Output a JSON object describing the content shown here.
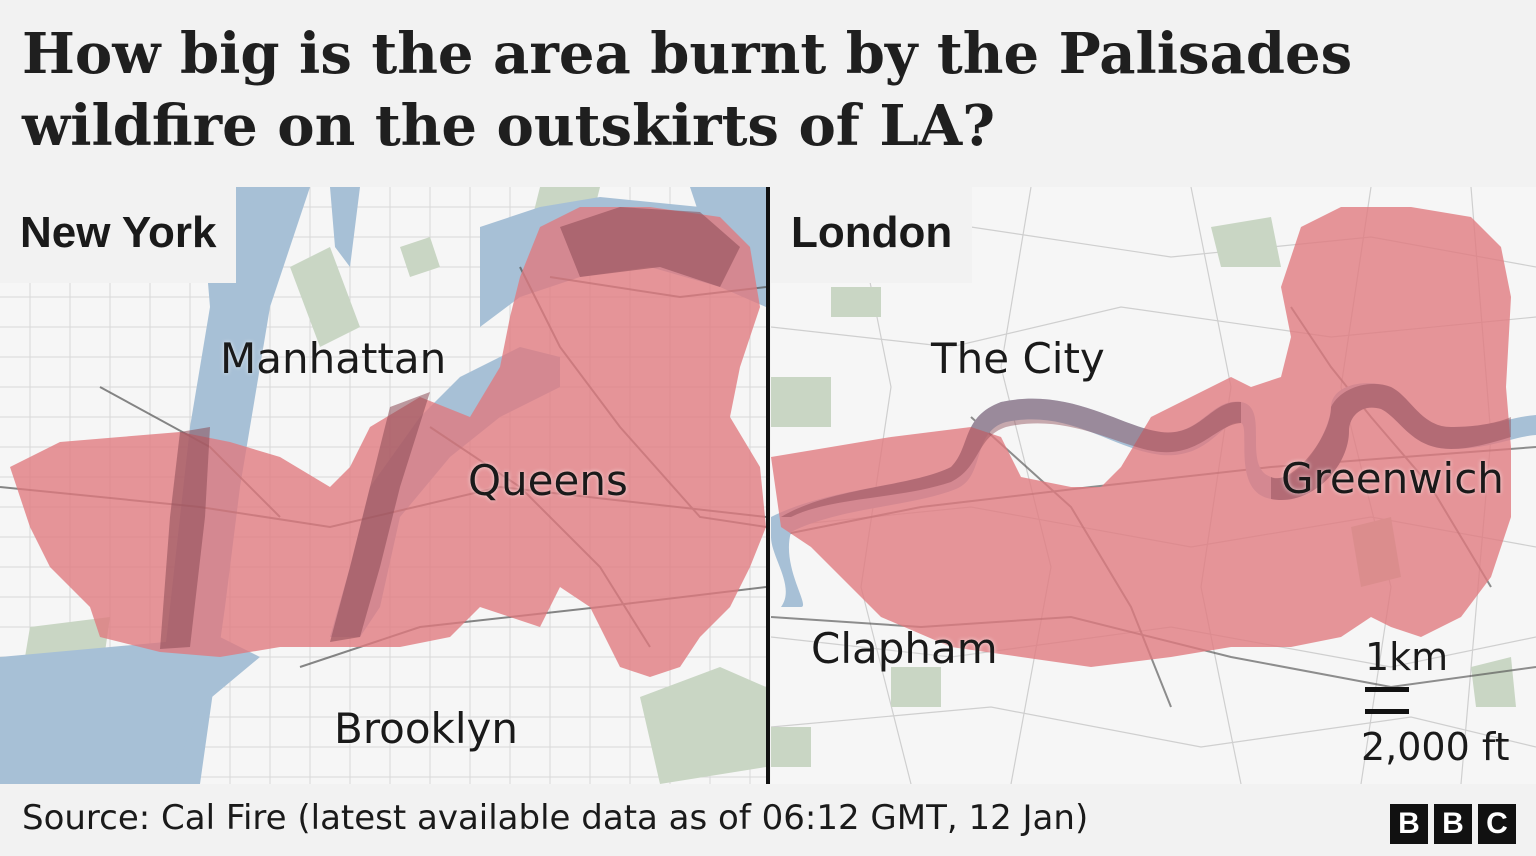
{
  "title": "How big is the area burnt by the Palisades wildfire on the outskirts of LA?",
  "new_york": {
    "name": "New York",
    "places": [
      "Manhattan",
      "Queens",
      "Brooklyn"
    ]
  },
  "london": {
    "name": "London",
    "places": [
      "The City",
      "Greenwich",
      "Clapham"
    ]
  },
  "scale": {
    "km": "1km",
    "ft": "2,000 ft"
  },
  "source": "Source: Cal Fire (latest available data as of 06:12 GMT, 12 Jan)",
  "brand": [
    "B",
    "B",
    "C"
  ],
  "colors": {
    "water": "#a7c0d6",
    "land": "#f6f6f6",
    "park": "#c9d6c4",
    "burnt_area": "#e0797d",
    "text": "#1a1a1a"
  }
}
